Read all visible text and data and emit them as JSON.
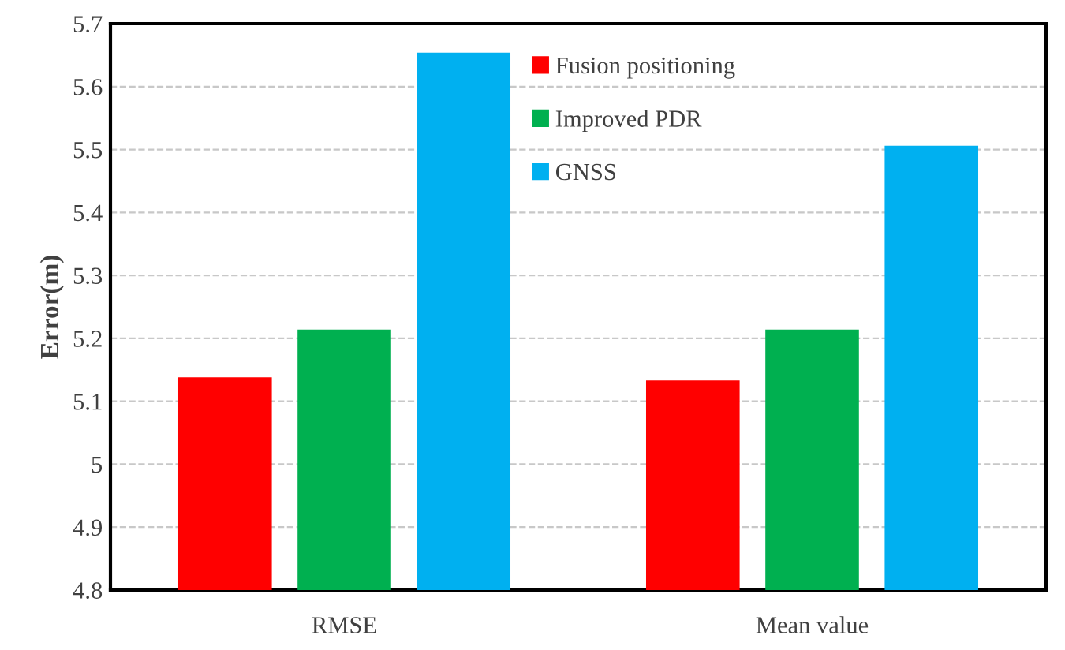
{
  "chart_data": {
    "type": "bar",
    "ylabel": "Error(m)",
    "categories": [
      "RMSE",
      "Mean value"
    ],
    "series": [
      {
        "name": "Fusion positioning",
        "color": "#ff0000",
        "values": [
          5.138,
          5.133
        ]
      },
      {
        "name": "Improved PDR",
        "color": "#00b050",
        "values": [
          5.214,
          5.214
        ]
      },
      {
        "name": "GNSS",
        "color": "#00b0f0",
        "values": [
          5.654,
          5.506
        ]
      }
    ],
    "ylim": [
      4.8,
      5.7
    ],
    "yticks": [
      4.8,
      4.9,
      5,
      5.1,
      5.2,
      5.3,
      5.4,
      5.5,
      5.6,
      5.7
    ],
    "grid": "y",
    "legend": "top"
  }
}
